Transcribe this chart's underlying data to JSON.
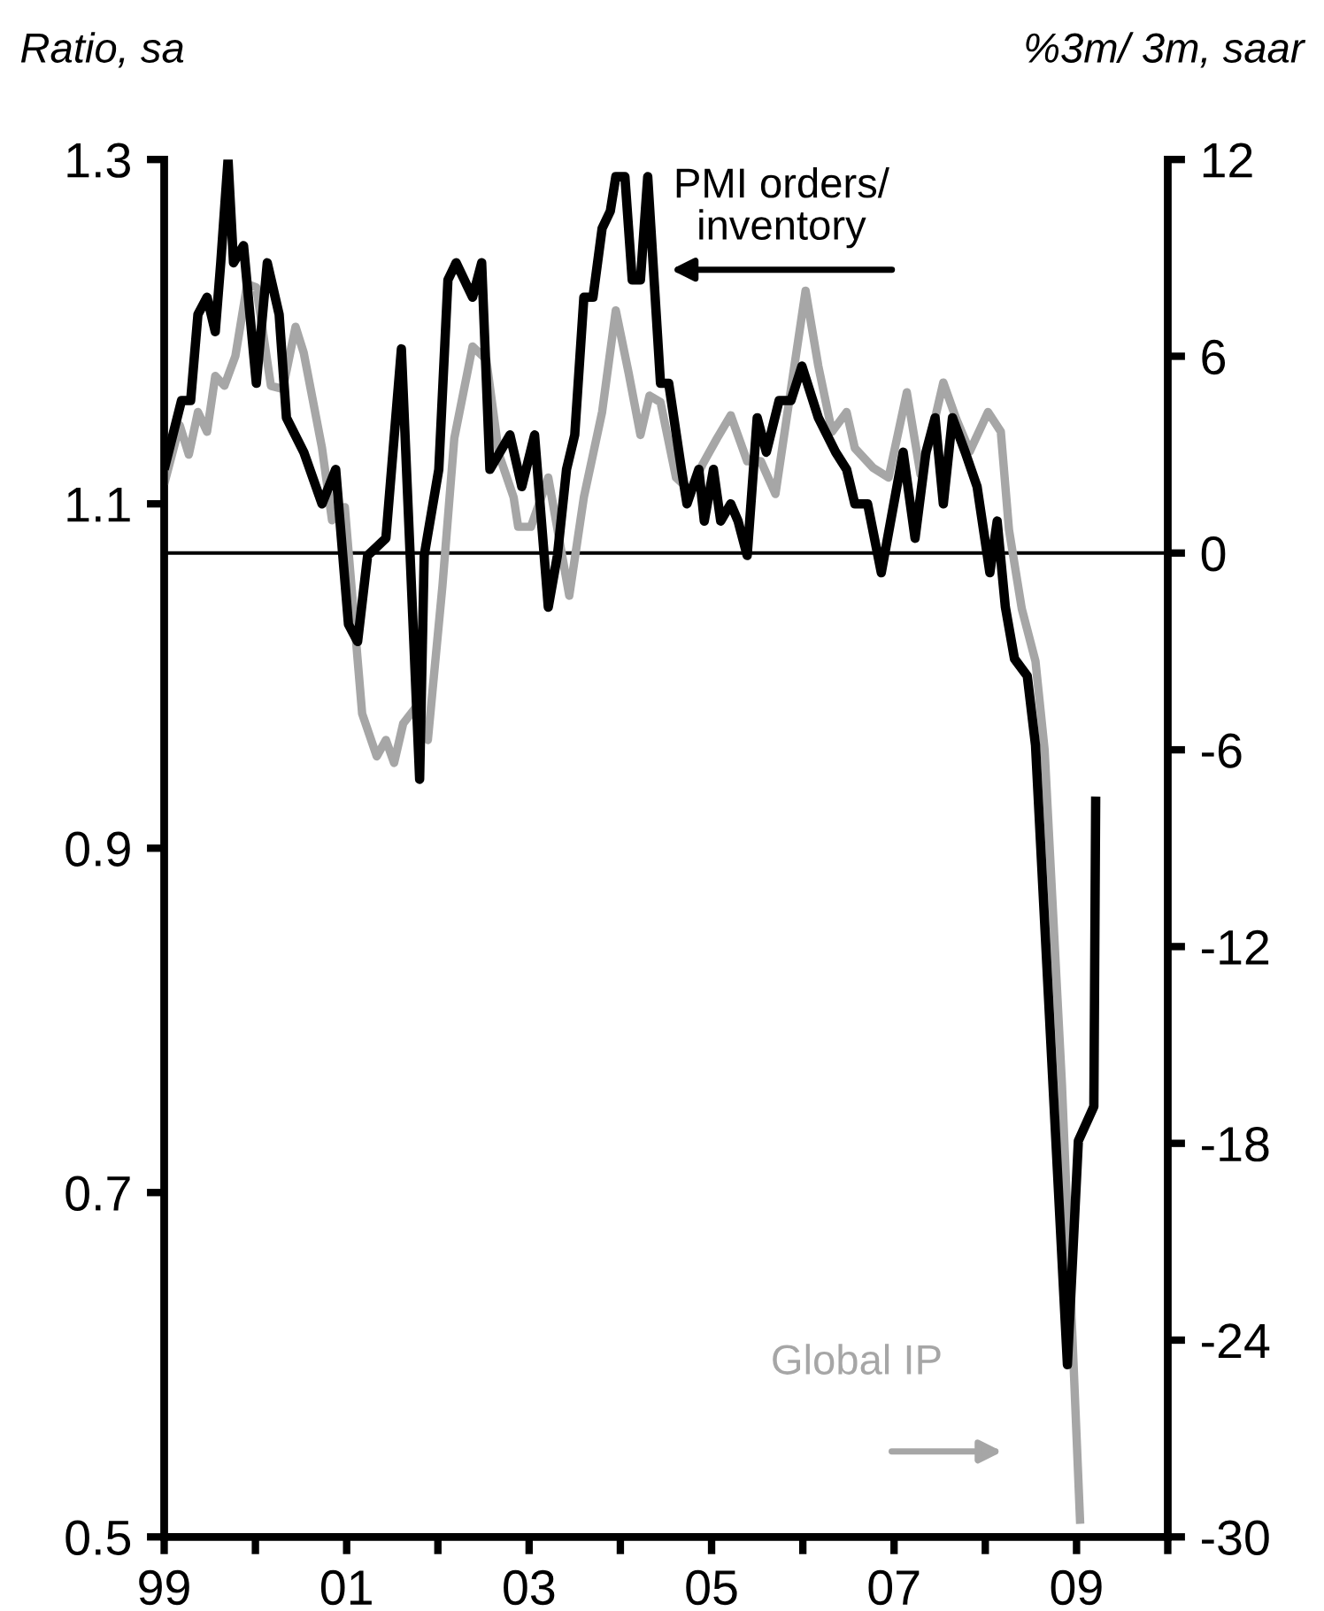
{
  "chart_data": {
    "type": "line",
    "ylabel": "Ratio, sa",
    "y2label": "%3m/ 3m, saar",
    "xlim": [
      1999,
      2010
    ],
    "xticks": [
      {
        "value": 1999,
        "label": "99"
      },
      {
        "value": 2000,
        "label": null
      },
      {
        "value": 2001,
        "label": "01"
      },
      {
        "value": 2002,
        "label": null
      },
      {
        "value": 2003,
        "label": "03"
      },
      {
        "value": 2004,
        "label": null
      },
      {
        "value": 2005,
        "label": "05"
      },
      {
        "value": 2006,
        "label": null
      },
      {
        "value": 2007,
        "label": "07"
      },
      {
        "value": 2008,
        "label": null
      },
      {
        "value": 2009,
        "label": "09"
      },
      {
        "value": 2010,
        "label": null
      }
    ],
    "ylim": [
      0.5,
      1.3
    ],
    "yticks": [
      0.5,
      0.7,
      0.9,
      1.1,
      1.3
    ],
    "y2lim": [
      -30,
      12
    ],
    "y2ticks": [
      -30,
      -24,
      -18,
      -12,
      -6,
      0,
      6,
      12
    ],
    "grid": false,
    "legend": false,
    "marker": "none",
    "line_style": "solid",
    "ref_lines": [
      {
        "axis": "y2",
        "value": 0,
        "label": null,
        "color": "#000000"
      }
    ],
    "series": [
      {
        "name": "PMI orders/ inventory",
        "color": "#000000",
        "axis": "y",
        "x": [
          1999.0,
          1999.19,
          1999.29,
          1999.37,
          1999.47,
          1999.56,
          1999.62,
          1999.7,
          1999.76,
          1999.87,
          2000.01,
          2000.13,
          2000.26,
          2000.34,
          2000.53,
          2000.73,
          2000.88,
          2001.02,
          2001.12,
          2001.23,
          2001.43,
          2001.6,
          2001.8,
          2001.85,
          2002.01,
          2002.11,
          2002.2,
          2002.38,
          2002.48,
          2002.57,
          2002.79,
          2002.92,
          2003.06,
          2003.21,
          2003.31,
          2003.41,
          2003.5,
          2003.6,
          2003.7,
          2003.8,
          2003.89,
          2003.95,
          2004.05,
          2004.13,
          2004.22,
          2004.3,
          2004.44,
          2004.53,
          2004.67,
          2004.73,
          2004.86,
          2004.92,
          2005.02,
          2005.1,
          2005.21,
          2005.29,
          2005.39,
          2005.5,
          2005.6,
          2005.74,
          2005.87,
          2005.99,
          2006.17,
          2006.36,
          2006.48,
          2006.57,
          2006.71,
          2006.86,
          2007.1,
          2007.23,
          2007.35,
          2007.45,
          2007.54,
          2007.64,
          2007.78,
          2007.91,
          2008.05,
          2008.13,
          2008.22,
          2008.32,
          2008.46,
          2008.55,
          2008.9,
          2009.02,
          2009.19,
          2009.21
        ],
        "values": [
          1.12,
          1.16,
          1.16,
          1.21,
          1.22,
          1.2,
          1.24,
          1.3,
          1.24,
          1.25,
          1.17,
          1.24,
          1.21,
          1.15,
          1.13,
          1.1,
          1.12,
          1.03,
          1.02,
          1.07,
          1.08,
          1.19,
          0.94,
          1.07,
          1.12,
          1.23,
          1.24,
          1.22,
          1.24,
          1.12,
          1.14,
          1.11,
          1.14,
          1.04,
          1.07,
          1.12,
          1.14,
          1.22,
          1.22,
          1.26,
          1.27,
          1.29,
          1.29,
          1.23,
          1.23,
          1.29,
          1.17,
          1.17,
          1.12,
          1.1,
          1.12,
          1.09,
          1.12,
          1.09,
          1.1,
          1.09,
          1.07,
          1.15,
          1.13,
          1.16,
          1.16,
          1.18,
          1.15,
          1.13,
          1.12,
          1.1,
          1.1,
          1.06,
          1.13,
          1.08,
          1.13,
          1.15,
          1.1,
          1.15,
          1.13,
          1.11,
          1.06,
          1.09,
          1.04,
          1.01,
          1.0,
          0.96,
          0.6,
          0.73,
          0.75,
          0.93
        ]
      },
      {
        "name": "Global IP",
        "color": "#a6a6a6",
        "axis": "y2",
        "x": [
          1999.0,
          1999.17,
          1999.27,
          1999.37,
          1999.47,
          1999.56,
          1999.66,
          1999.78,
          1999.91,
          2000.01,
          2000.17,
          2000.3,
          2000.44,
          2000.53,
          2000.73,
          2000.84,
          2000.98,
          2001.17,
          2001.33,
          2001.43,
          2001.52,
          2001.62,
          2001.76,
          2001.89,
          2002.05,
          2002.18,
          2002.38,
          2002.53,
          2002.67,
          2002.83,
          2002.88,
          2003.02,
          2003.21,
          2003.44,
          2003.6,
          2003.8,
          2003.95,
          2004.09,
          2004.22,
          2004.32,
          2004.44,
          2004.61,
          2004.77,
          2004.9,
          2005.06,
          2005.21,
          2005.39,
          2005.54,
          2005.7,
          2005.87,
          2006.03,
          2006.17,
          2006.32,
          2006.48,
          2006.57,
          2006.77,
          2006.94,
          2007.14,
          2007.29,
          2007.39,
          2007.54,
          2007.68,
          2007.83,
          2008.03,
          2008.17,
          2008.26,
          2008.4,
          2008.55,
          2008.65,
          2008.84,
          2009.04
        ],
        "values": [
          2.1,
          3.9,
          3.0,
          4.3,
          3.7,
          5.4,
          5.1,
          6.0,
          8.2,
          8.1,
          5.1,
          5.0,
          6.9,
          6.1,
          3.2,
          1.0,
          1.4,
          -4.9,
          -6.2,
          -5.7,
          -6.4,
          -5.2,
          -4.7,
          -5.7,
          -1.0,
          3.5,
          6.3,
          5.9,
          3.0,
          1.7,
          0.8,
          0.8,
          2.3,
          -1.3,
          1.7,
          4.3,
          7.4,
          5.5,
          3.6,
          4.8,
          4.6,
          2.3,
          1.9,
          2.7,
          3.5,
          4.2,
          2.8,
          2.8,
          1.8,
          5.0,
          8.0,
          5.7,
          3.7,
          4.3,
          3.2,
          2.6,
          2.3,
          4.9,
          2.4,
          3.4,
          5.2,
          4.1,
          3.1,
          4.3,
          3.7,
          0.7,
          -1.7,
          -3.3,
          -6.0,
          -16.2,
          -29.6
        ]
      }
    ]
  }
}
